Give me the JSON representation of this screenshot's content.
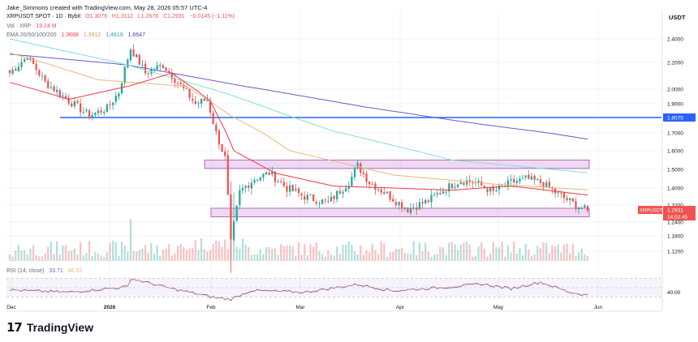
{
  "credit": "Jake_Simmons created with TradingView.com, May 28, 2026 05:57 UTC-4",
  "header": {
    "symbol_line": "XRPUSDT SPOT · 1D · Bybit",
    "open": "O1.3076",
    "high": "H1.3112",
    "low": "L1.2676",
    "close": "C1.2931",
    "change": "−0.0145 (−1.11%)",
    "vol_label": "Vol · XRP",
    "vol_value": "19.24 M",
    "ema_label": "EMA 20/50/100/200",
    "ema20": "1.3668",
    "ema50": "1.3912",
    "ema100": "1.4819",
    "ema200": "1.6647",
    "rsi_label": "RSI (14, close)",
    "rsi_value": "33.71",
    "rsi_extra": "40.52"
  },
  "axis": {
    "currency": "USDT",
    "price_ticks": [
      "2.4000",
      "2.2000",
      "2.0000",
      "1.9000",
      "1.7000",
      "1.6000",
      "1.5000",
      "1.4000",
      "1.3200",
      "1.2400",
      "1.1800",
      "1.1200"
    ],
    "level_label": "1.8075",
    "symbol_tag": "XRPUSDT",
    "price_tag": "1.2931",
    "countdown_tag": "14:02:45",
    "rsi_tick": "40.00",
    "time_ticks": [
      "Dec",
      "2026",
      "Feb",
      "Mar",
      "Apr",
      "May",
      "Jun"
    ]
  },
  "colors": {
    "up": "#26a69a",
    "down": "#ef5350",
    "ema20": "#f23645",
    "ema50": "#e8b97a",
    "ema100": "#7fe0d4",
    "ema200": "#6a5acd",
    "level": "#2962ff",
    "zone": "#ce93d8",
    "rsi": "#7e57c2"
  },
  "brand": "TradingView",
  "chart_data": {
    "type": "candlestick",
    "symbol": "XRPUSDT",
    "timeframe": "1D",
    "y_axis": "linear",
    "horizontal_level": 1.8075,
    "zones": [
      {
        "from": 1.505,
        "to": 1.55
      },
      {
        "from": 1.265,
        "to": 1.305
      }
    ],
    "x_months": [
      "Dec",
      "2026",
      "Feb",
      "Mar",
      "Apr",
      "May",
      "Jun"
    ],
    "anchors": [
      {
        "x": 0,
        "y": 2.12
      },
      {
        "x": 6,
        "y": 2.25
      },
      {
        "x": 12,
        "y": 2.05
      },
      {
        "x": 20,
        "y": 1.92
      },
      {
        "x": 27,
        "y": 1.82
      },
      {
        "x": 33,
        "y": 1.87
      },
      {
        "x": 37,
        "y": 1.98
      },
      {
        "x": 41,
        "y": 2.32
      },
      {
        "x": 46,
        "y": 2.12
      },
      {
        "x": 52,
        "y": 2.18
      },
      {
        "x": 57,
        "y": 2.05
      },
      {
        "x": 63,
        "y": 1.9
      },
      {
        "x": 67,
        "y": 1.93
      },
      {
        "x": 70,
        "y": 1.7
      },
      {
        "x": 73,
        "y": 1.56
      },
      {
        "x": 75,
        "y": 1.15
      },
      {
        "x": 78,
        "y": 1.38
      },
      {
        "x": 83,
        "y": 1.45
      },
      {
        "x": 88,
        "y": 1.48
      },
      {
        "x": 94,
        "y": 1.4
      },
      {
        "x": 100,
        "y": 1.36
      },
      {
        "x": 108,
        "y": 1.33
      },
      {
        "x": 115,
        "y": 1.43
      },
      {
        "x": 118,
        "y": 1.52
      },
      {
        "x": 122,
        "y": 1.43
      },
      {
        "x": 128,
        "y": 1.37
      },
      {
        "x": 135,
        "y": 1.3
      },
      {
        "x": 142,
        "y": 1.34
      },
      {
        "x": 148,
        "y": 1.4
      },
      {
        "x": 153,
        "y": 1.44
      },
      {
        "x": 158,
        "y": 1.43
      },
      {
        "x": 164,
        "y": 1.38
      },
      {
        "x": 170,
        "y": 1.43
      },
      {
        "x": 175,
        "y": 1.45
      },
      {
        "x": 180,
        "y": 1.43
      },
      {
        "x": 186,
        "y": 1.37
      },
      {
        "x": 192,
        "y": 1.32
      },
      {
        "x": 196,
        "y": 1.293
      }
    ],
    "ema200": [
      [
        0,
        2.27
      ],
      [
        40,
        2.18
      ],
      [
        80,
        2.02
      ],
      [
        120,
        1.88
      ],
      [
        160,
        1.76
      ],
      [
        196,
        1.665
      ]
    ],
    "ema100": [
      [
        0,
        2.4
      ],
      [
        40,
        2.18
      ],
      [
        75,
        1.96
      ],
      [
        110,
        1.71
      ],
      [
        150,
        1.55
      ],
      [
        196,
        1.482
      ]
    ],
    "ema50": [
      [
        0,
        2.28
      ],
      [
        30,
        2.07
      ],
      [
        60,
        2.02
      ],
      [
        75,
        1.82
      ],
      [
        95,
        1.6
      ],
      [
        130,
        1.47
      ],
      [
        165,
        1.42
      ],
      [
        196,
        1.391
      ]
    ],
    "ema20": [
      [
        0,
        2.05
      ],
      [
        20,
        1.93
      ],
      [
        40,
        2.02
      ],
      [
        55,
        2.12
      ],
      [
        68,
        1.92
      ],
      [
        76,
        1.6
      ],
      [
        90,
        1.48
      ],
      [
        110,
        1.41
      ],
      [
        130,
        1.4
      ],
      [
        150,
        1.39
      ],
      [
        170,
        1.41
      ],
      [
        196,
        1.367
      ]
    ],
    "rsi": [
      {
        "x": 0,
        "y": 45
      },
      {
        "x": 20,
        "y": 40
      },
      {
        "x": 40,
        "y": 52
      },
      {
        "x": 41,
        "y": 70
      },
      {
        "x": 55,
        "y": 48
      },
      {
        "x": 70,
        "y": 28
      },
      {
        "x": 75,
        "y": 25
      },
      {
        "x": 82,
        "y": 44
      },
      {
        "x": 100,
        "y": 40
      },
      {
        "x": 118,
        "y": 57
      },
      {
        "x": 130,
        "y": 43
      },
      {
        "x": 150,
        "y": 52
      },
      {
        "x": 160,
        "y": 58
      },
      {
        "x": 170,
        "y": 48
      },
      {
        "x": 180,
        "y": 62
      },
      {
        "x": 190,
        "y": 40
      },
      {
        "x": 196,
        "y": 33.71
      }
    ]
  }
}
